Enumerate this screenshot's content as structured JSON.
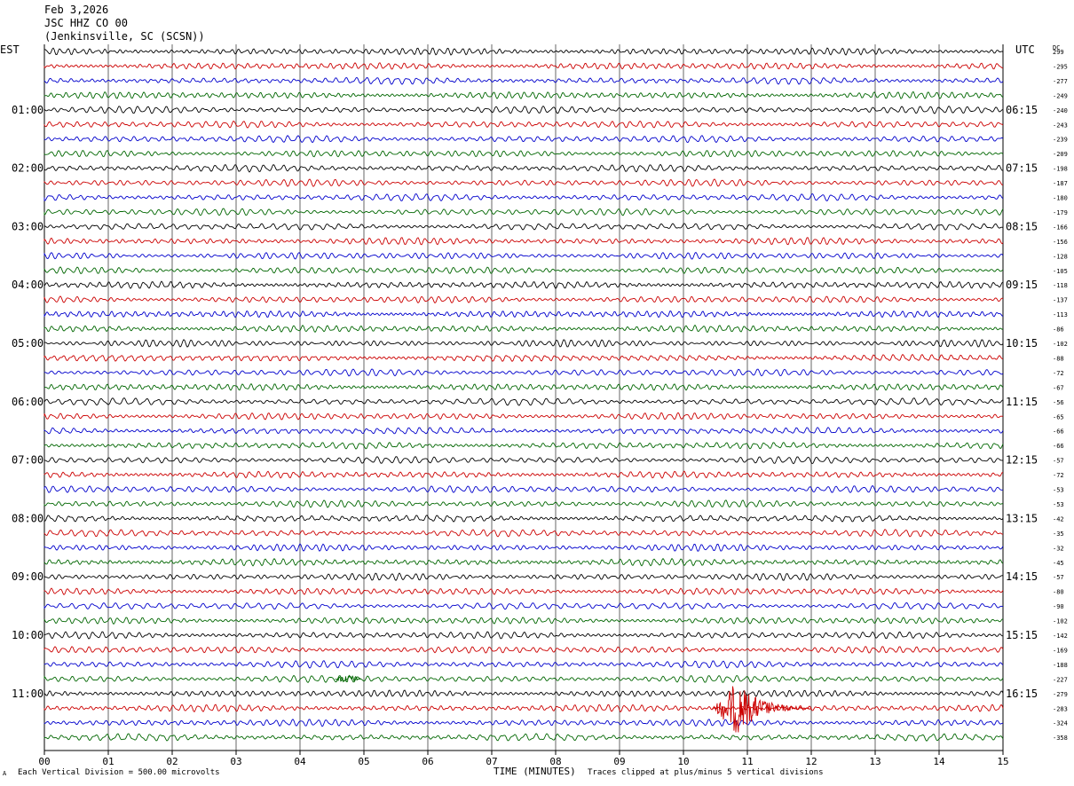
{
  "header": {
    "date": "Feb 3,2026",
    "station": "JSC HHZ CO 00",
    "location": "(Jenkinsville, SC (SCSN))"
  },
  "left_axis_label": "EST",
  "right_axis_label": "UTC",
  "dc_label": "DC",
  "footer": {
    "scale_prefix": "Each Vertical Division = ",
    "scale_value": "500.00 microvolts",
    "clip_note": "Traces clipped at plus/minus 5 vertical divisions",
    "corner_mark": "A"
  },
  "colors": {
    "trace_cycle": [
      "#000000",
      "#cc0000",
      "#0000cc",
      "#006600"
    ],
    "grid": "#000000"
  },
  "chart_data": {
    "type": "line",
    "title": "",
    "xlabel": "TIME (MINUTES)",
    "xlim": [
      0,
      15
    ],
    "x_ticks": [
      "00",
      "01",
      "02",
      "03",
      "04",
      "05",
      "06",
      "07",
      "08",
      "09",
      "10",
      "11",
      "12",
      "13",
      "14",
      "15"
    ],
    "minutes_per_row": 15,
    "rows": 48,
    "est_hour_labels": [
      "01:00",
      "02:00",
      "03:00",
      "04:00",
      "05:00",
      "06:00",
      "07:00",
      "08:00",
      "09:00",
      "10:00",
      "11:00"
    ],
    "utc_hour_labels": [
      "06:15",
      "07:15",
      "08:15",
      "09:15",
      "10:15",
      "11:15",
      "12:15",
      "13:15",
      "14:15",
      "15:15",
      "16:15"
    ],
    "dc_offsets": [
      299,
      -295,
      -277,
      -249,
      -240,
      -243,
      -239,
      -209,
      -198,
      -187,
      -180,
      -179,
      -166,
      -156,
      -128,
      -105,
      -118,
      -137,
      -113,
      -86,
      -102,
      -88,
      -72,
      -67,
      -56,
      -65,
      -66,
      -66,
      -57,
      -72,
      -53,
      -53,
      -42,
      -35,
      -32,
      -45,
      -57,
      -80,
      -90,
      -102,
      -142,
      -169,
      -188,
      -227,
      -279,
      -283,
      -324,
      -358
    ],
    "events": [
      {
        "row": 43,
        "start_min": 4.55,
        "end_min": 4.95,
        "amplitude": "moderate"
      },
      {
        "row": 45,
        "start_min": 10.45,
        "end_min": 12.0,
        "amplitude": "large"
      }
    ]
  }
}
